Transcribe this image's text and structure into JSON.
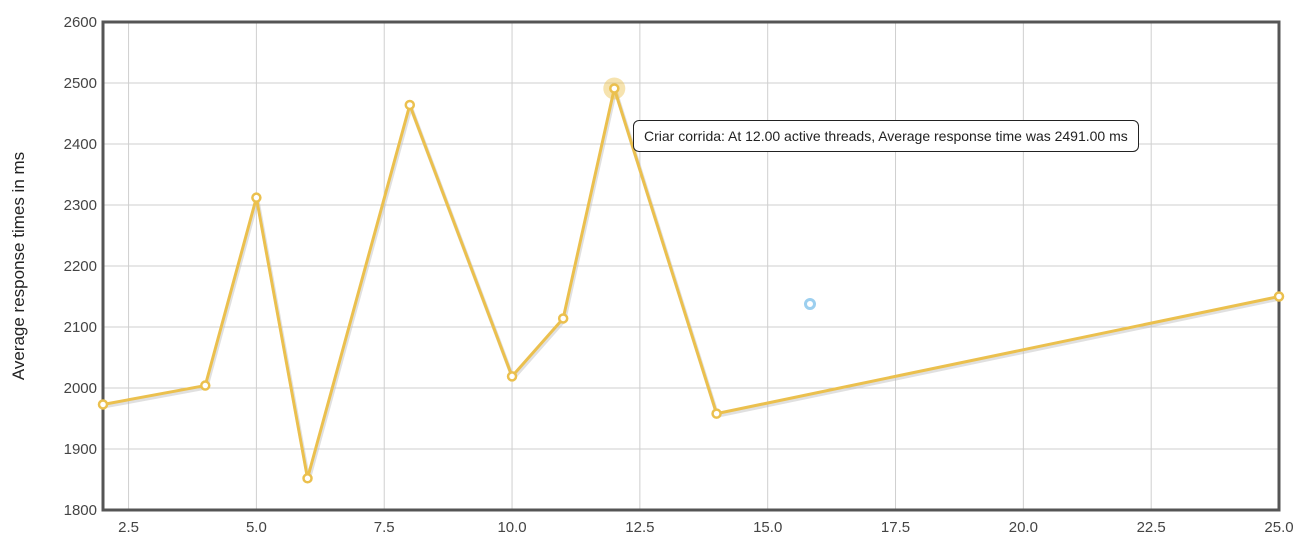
{
  "chart_data": {
    "type": "line",
    "ylabel": "Average response times in ms",
    "xlabel": "",
    "xlim": [
      2.0,
      25.0
    ],
    "ylim": [
      1800,
      2600
    ],
    "xticks": [
      "2.5",
      "5.0",
      "7.5",
      "10.0",
      "12.5",
      "15.0",
      "17.5",
      "20.0",
      "22.5",
      "25.0"
    ],
    "yticks": [
      "1800",
      "1900",
      "2000",
      "2100",
      "2200",
      "2300",
      "2400",
      "2500",
      "2600"
    ],
    "grid": true,
    "series": [
      {
        "name": "Criar corrida",
        "x": [
          2,
          4,
          5,
          6,
          8,
          10,
          11,
          12,
          14,
          25
        ],
        "y": [
          1973,
          2004,
          2312,
          1852,
          2464,
          2019,
          2114,
          2491,
          1958,
          2150
        ]
      }
    ],
    "highlight_index": 7,
    "tooltip": "Criar corrida: At 12.00 active threads, Average response time was 2491.00 ms",
    "colors": {
      "line": "#EBC04E",
      "grid": "#cfcfcf",
      "frame": "#555555",
      "cursor": "#9CCFEF"
    }
  }
}
